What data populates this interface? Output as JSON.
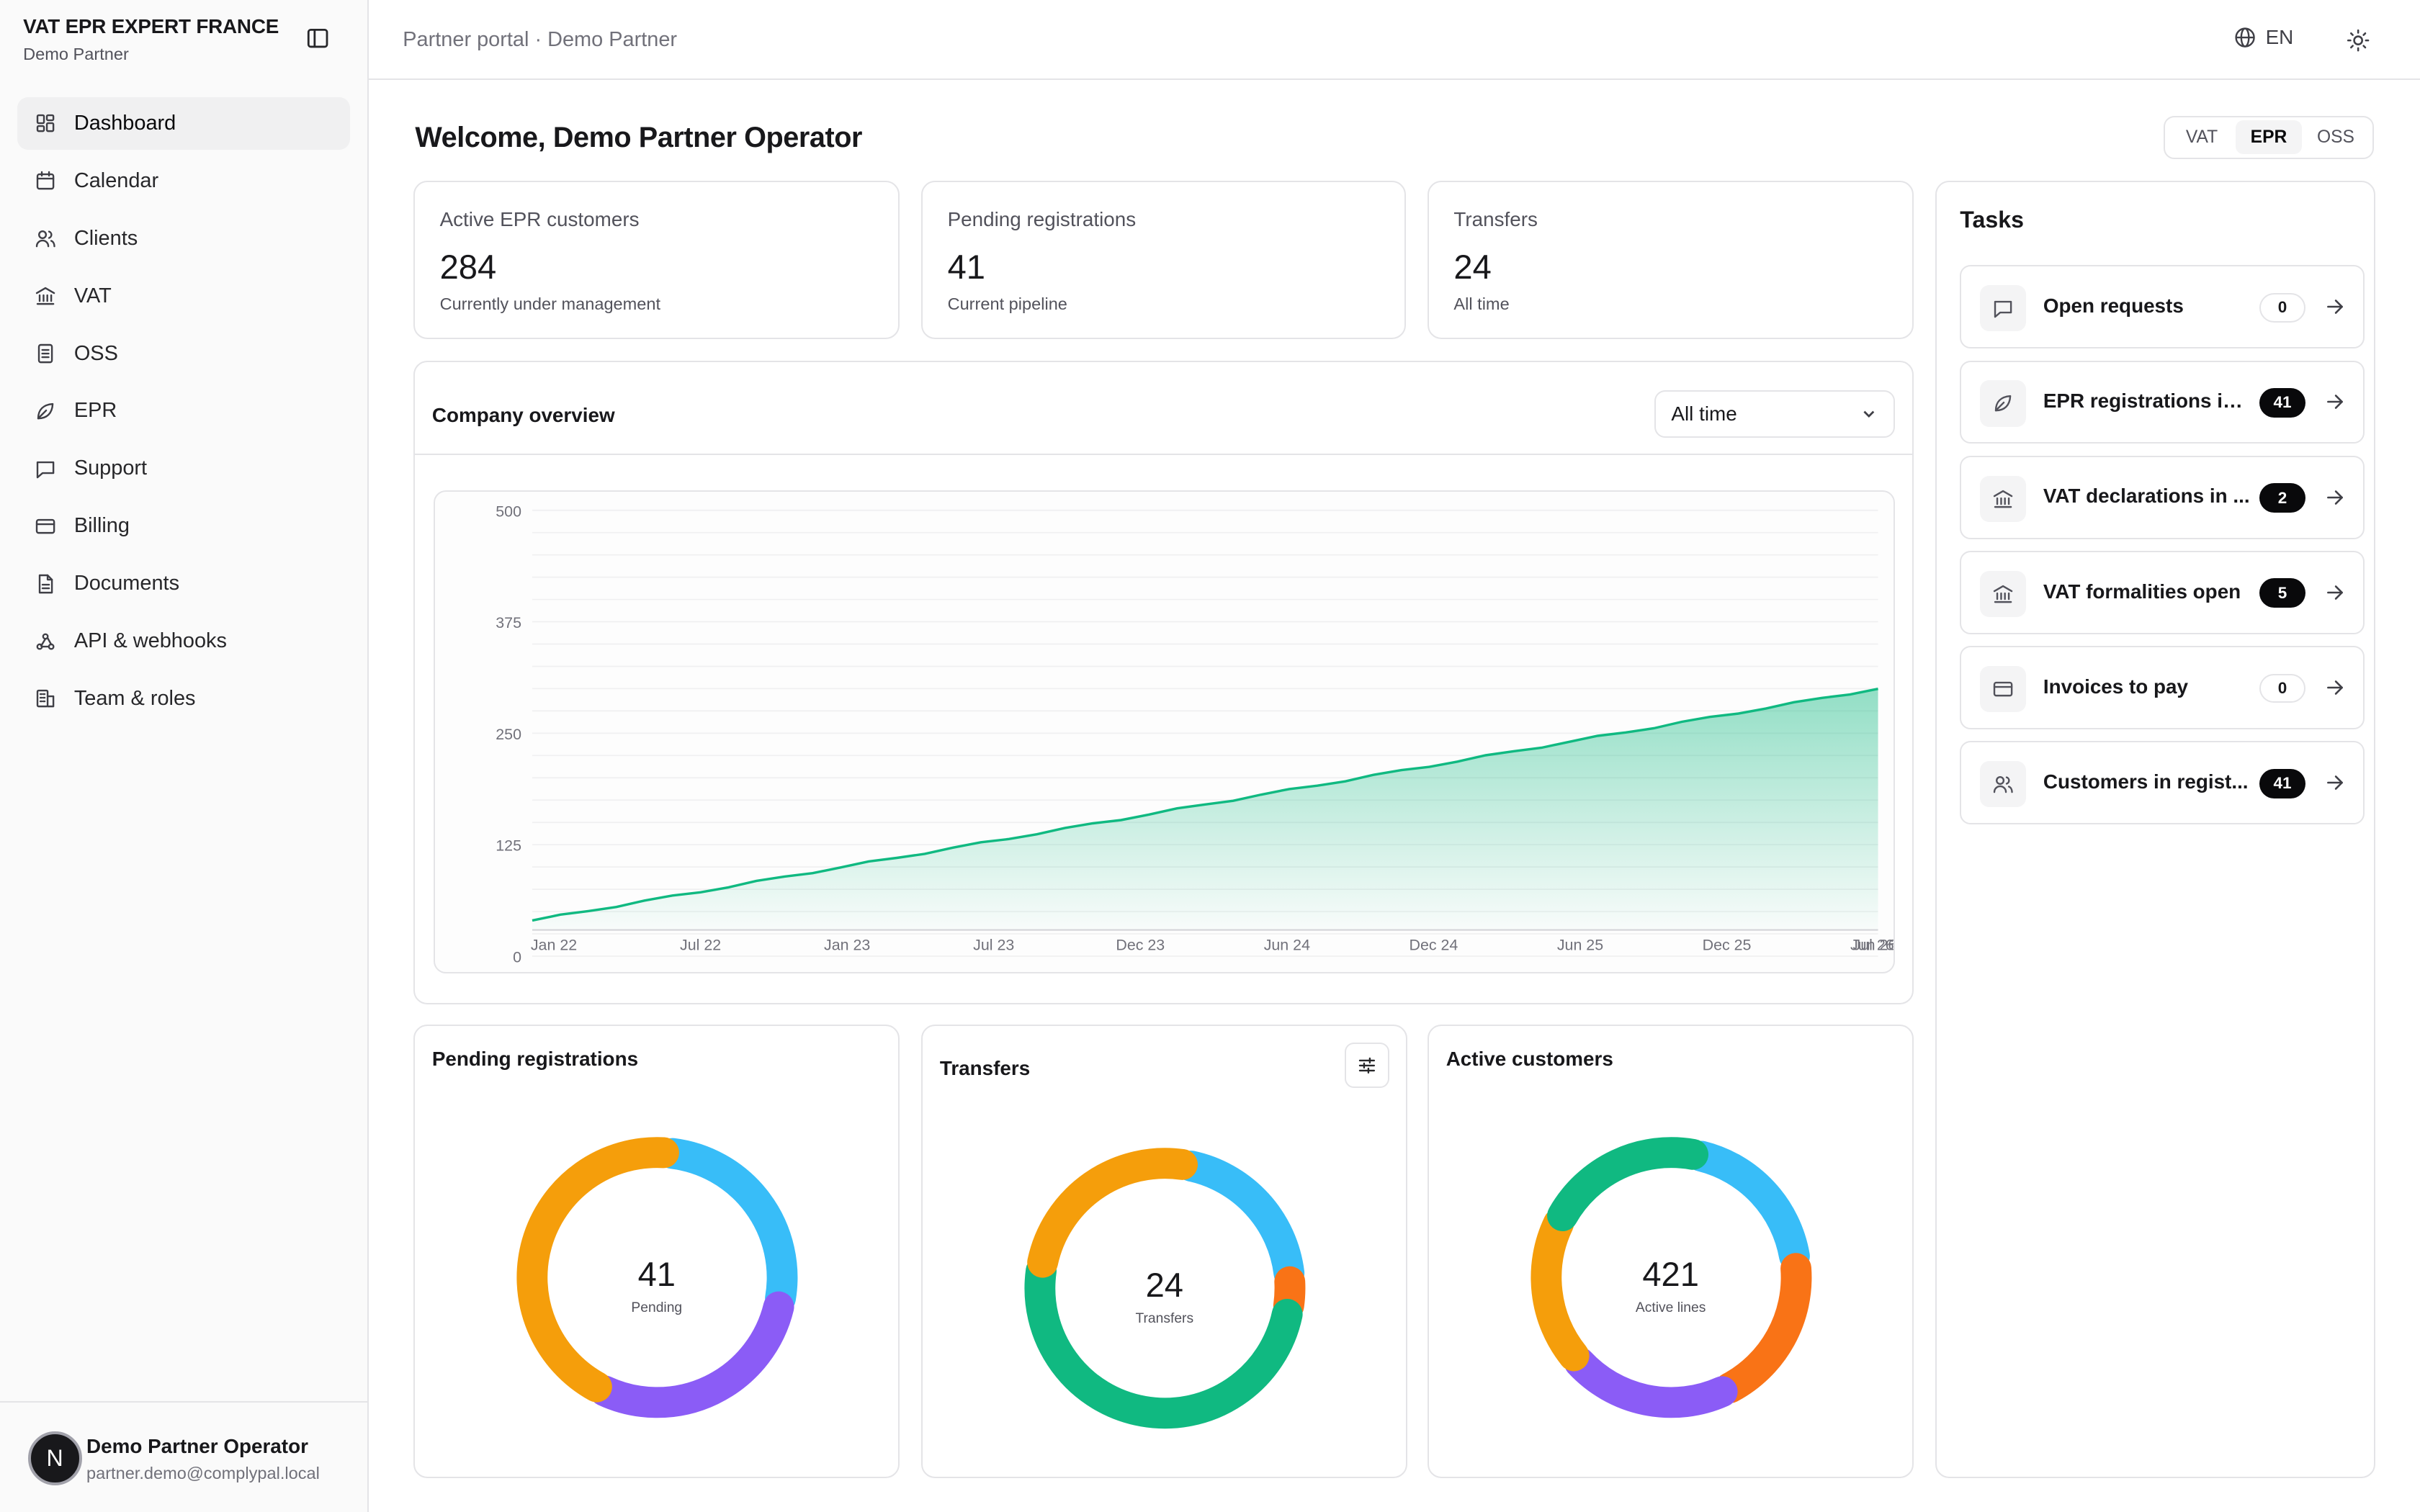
{
  "brand": {
    "title": "VAT EPR EXPERT FRANCE",
    "subtitle": "Demo Partner"
  },
  "nav": [
    {
      "label": "Dashboard",
      "icon": "dashboard-icon",
      "active": true
    },
    {
      "label": "Calendar",
      "icon": "calendar-icon"
    },
    {
      "label": "Clients",
      "icon": "users-icon"
    },
    {
      "label": "VAT",
      "icon": "bank-icon"
    },
    {
      "label": "OSS",
      "icon": "document-icon"
    },
    {
      "label": "EPR",
      "icon": "leaf-icon"
    },
    {
      "label": "Support",
      "icon": "message-icon"
    },
    {
      "label": "Billing",
      "icon": "credit-card-icon"
    },
    {
      "label": "Documents",
      "icon": "file-icon"
    },
    {
      "label": "API & webhooks",
      "icon": "webhook-icon"
    },
    {
      "label": "Team & roles",
      "icon": "building-icon"
    }
  ],
  "user": {
    "initial": "N",
    "name": "Demo Partner Operator",
    "email": "partner.demo@complypal.local"
  },
  "topbar": {
    "breadcrumb": "Partner portal · Demo Partner",
    "language": "EN"
  },
  "welcome": "Welcome, Demo Partner Operator",
  "segment": {
    "options": [
      "VAT",
      "EPR",
      "OSS"
    ],
    "selected": "EPR"
  },
  "stats": [
    {
      "label": "Active EPR customers",
      "value": "284",
      "sub": "Currently under management"
    },
    {
      "label": "Pending registrations",
      "value": "41",
      "sub": "Current pipeline"
    },
    {
      "label": "Transfers",
      "value": "24",
      "sub": "All time"
    }
  ],
  "overview": {
    "title": "Company overview",
    "range": "All time"
  },
  "chart_data": [
    {
      "type": "area",
      "title": "Company overview",
      "ylim": [
        0,
        500
      ],
      "y_ticks": [
        0,
        125,
        250,
        375,
        500
      ],
      "x_ticks": [
        "Jan 22",
        "Jul 22",
        "Jan 23",
        "Jul 23",
        "Dec 23",
        "Jun 24",
        "Dec 24",
        "Jun 25",
        "Dec 25",
        "Jun 26",
        "Jul 26"
      ],
      "series": [
        {
          "values": [
            40,
            300
          ]
        }
      ],
      "color": "#10b981",
      "grid": true
    },
    {
      "type": "pie",
      "title": "Pending registrations",
      "center_value": "41",
      "center_label": "Pending",
      "slices": [
        {
          "value": 11,
          "color": "#38bdf8"
        },
        {
          "value": 12,
          "color": "#8b5cf6"
        },
        {
          "value": 18,
          "color": "#f59e0b"
        }
      ]
    },
    {
      "type": "pie",
      "title": "Transfers",
      "center_value": "24",
      "center_label": "Transfers",
      "slices": [
        {
          "value": 5,
          "color": "#38bdf8"
        },
        {
          "value": 1,
          "color": "#f97316"
        },
        {
          "value": 12,
          "color": "#10b981"
        },
        {
          "value": 6,
          "color": "#f59e0b"
        }
      ]
    },
    {
      "type": "pie",
      "title": "Active customers",
      "center_value": "421",
      "center_label": "Active lines",
      "slices": [
        {
          "value": 82,
          "color": "#38bdf8"
        },
        {
          "value": 2,
          "color": "#e4e4e7"
        },
        {
          "value": 82,
          "color": "#f97316"
        },
        {
          "value": 88,
          "color": "#8b5cf6"
        },
        {
          "value": 80,
          "color": "#f59e0b"
        },
        {
          "value": 87,
          "color": "#10b981"
        }
      ]
    }
  ],
  "tasks": {
    "title": "Tasks",
    "items": [
      {
        "label": "Open requests",
        "count": "0",
        "icon": "message-icon"
      },
      {
        "label": "EPR registrations in...",
        "count": "41",
        "icon": "leaf-icon"
      },
      {
        "label": "VAT declarations in ...",
        "count": "2",
        "icon": "bank-icon"
      },
      {
        "label": "VAT formalities open",
        "count": "5",
        "icon": "bank-icon"
      },
      {
        "label": "Invoices to pay",
        "count": "0",
        "icon": "credit-card-icon"
      },
      {
        "label": "Customers in regist...",
        "count": "41",
        "icon": "users-icon"
      }
    ]
  }
}
